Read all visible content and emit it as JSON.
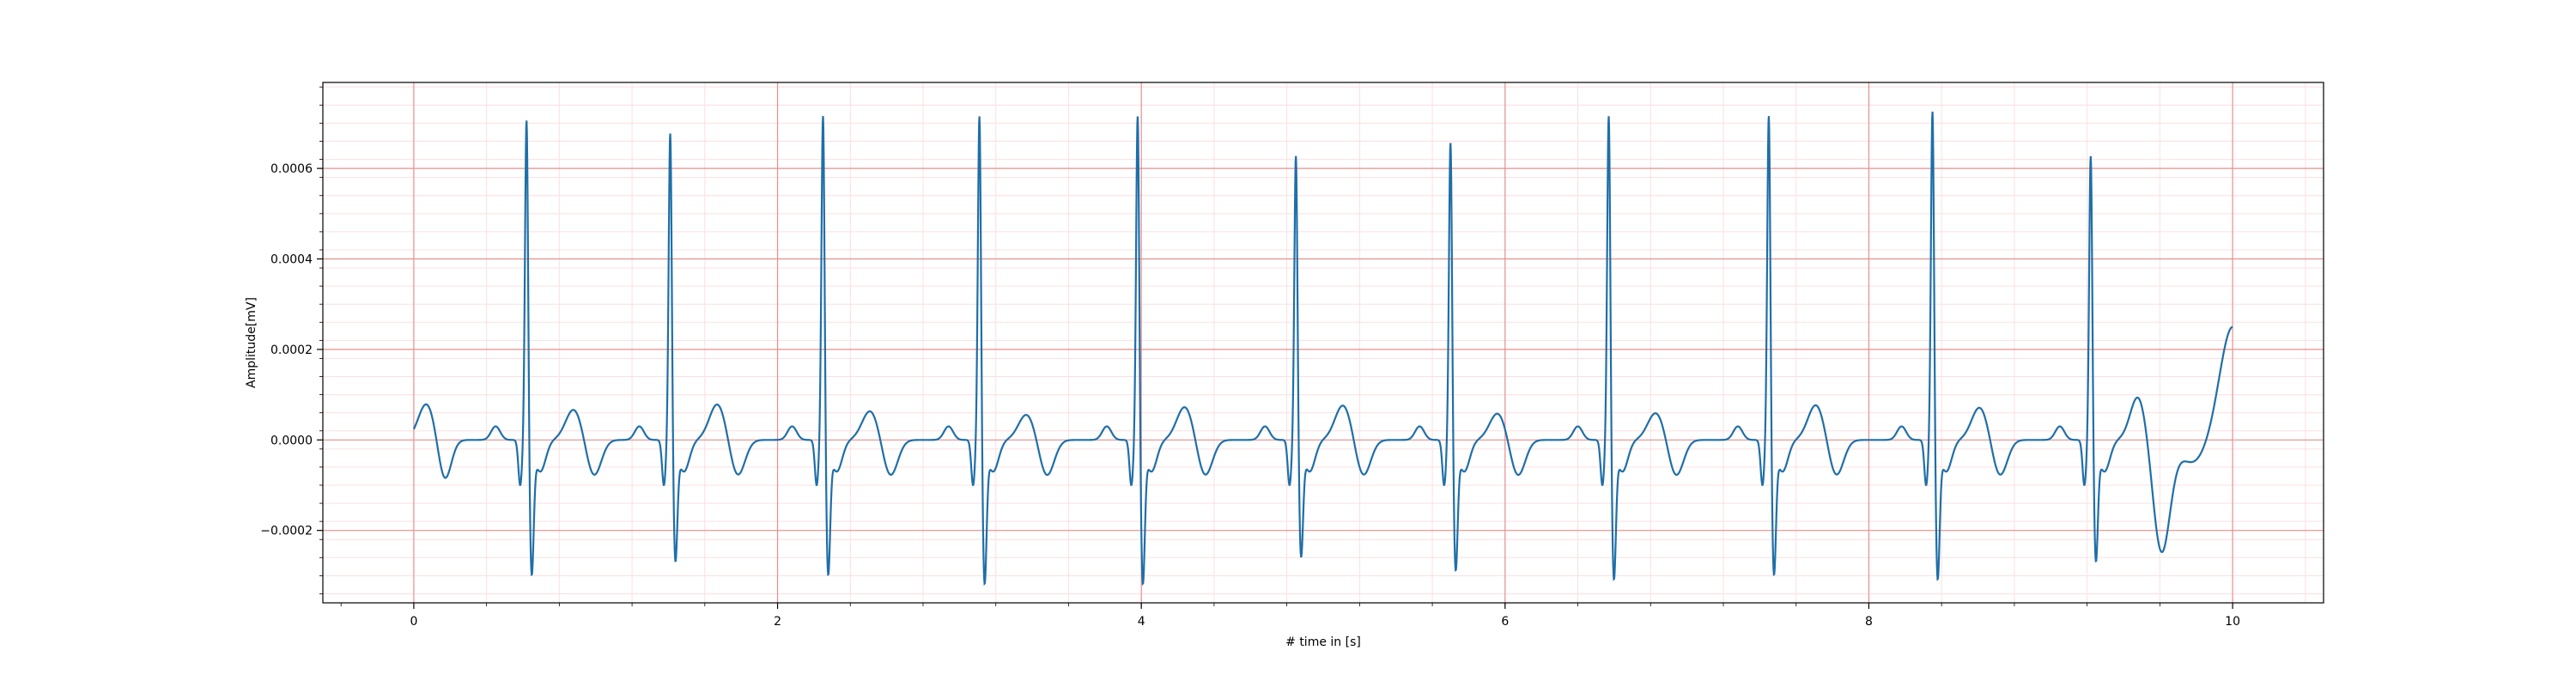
{
  "chart_data": {
    "type": "line",
    "xlabel": "# time in [s]",
    "ylabel": "Amplitude[mV]",
    "xlim": [
      -0.5,
      10.5
    ],
    "ylim": [
      -0.00036,
      0.00079
    ],
    "grid": {
      "major": true,
      "minor": true,
      "major_color": "#e88e8e",
      "minor_color": "#fbe0e0"
    },
    "x_ticks": [
      0,
      2,
      4,
      6,
      8,
      10
    ],
    "x_tick_labels": [
      "0",
      "2",
      "4",
      "6",
      "8",
      "10"
    ],
    "y_ticks": [
      -0.0002,
      0.0,
      0.0002,
      0.0004,
      0.0006
    ],
    "y_tick_labels": [
      "−0.0002",
      "0.0000",
      "0.0002",
      "0.0004",
      "0.0006"
    ],
    "line_color": "#1f6fa8",
    "sample_rate_hz": 500,
    "duration_s": 10,
    "r_peaks": [
      {
        "t": 0.62,
        "r": 0.00072,
        "s": -0.00028
      },
      {
        "t": 1.41,
        "r": 0.00069,
        "s": -0.00025
      },
      {
        "t": 2.25,
        "r": 0.00073,
        "s": -0.00028
      },
      {
        "t": 3.11,
        "r": 0.00073,
        "s": -0.0003
      },
      {
        "t": 3.98,
        "r": 0.00073,
        "s": -0.0003
      },
      {
        "t": 4.85,
        "r": 0.00064,
        "s": -0.00024
      },
      {
        "t": 5.7,
        "r": 0.00067,
        "s": -0.00027
      },
      {
        "t": 6.57,
        "r": 0.00073,
        "s": -0.00029
      },
      {
        "t": 7.45,
        "r": 0.00073,
        "s": -0.00028
      },
      {
        "t": 8.35,
        "r": 0.00074,
        "s": -0.00029
      },
      {
        "t": 9.22,
        "r": 0.00064,
        "s": -0.00025
      }
    ],
    "t_wave_amplitude": 8e-05,
    "start_value": 3e-05,
    "end_value": 0.00025
  }
}
